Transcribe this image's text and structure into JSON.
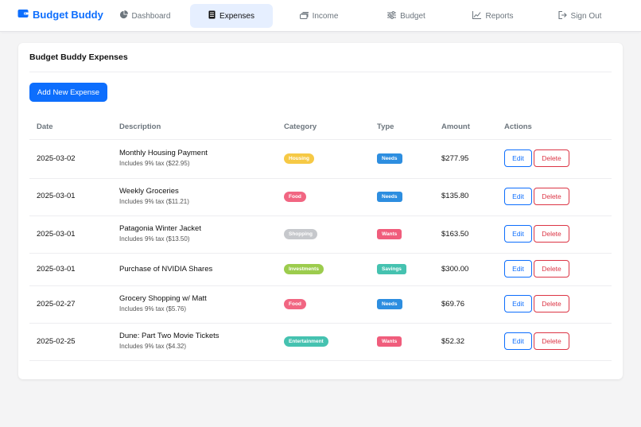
{
  "app": {
    "name": "Budget Buddy",
    "brand_color": "#0d6efd"
  },
  "nav": [
    {
      "label": "Dashboard",
      "icon": "pie-chart-icon"
    },
    {
      "label": "Expenses",
      "icon": "receipt-icon",
      "active": true
    },
    {
      "label": "Income",
      "icon": "cash-stack-icon"
    },
    {
      "label": "Budget",
      "icon": "sliders-icon"
    },
    {
      "label": "Reports",
      "icon": "graph-up-icon"
    },
    {
      "label": "Sign Out",
      "icon": "sign-out-icon"
    }
  ],
  "page": {
    "title": "Budget Buddy Expenses",
    "add_button": "Add New Expense"
  },
  "table": {
    "headers": [
      "Date",
      "Description",
      "Category",
      "Type",
      "Amount",
      "Actions"
    ],
    "edit_label": "Edit",
    "delete_label": "Delete",
    "rows": [
      {
        "date": "2025-03-02",
        "description": "Monthly Housing Payment",
        "tax_note": "Includes 9% tax ($22.95)",
        "category": "Housing",
        "type": "Needs",
        "amount": "$277.95"
      },
      {
        "date": "2025-03-01",
        "description": "Weekly Groceries",
        "tax_note": "Includes 9% tax ($11.21)",
        "category": "Food",
        "type": "Needs",
        "amount": "$135.80"
      },
      {
        "date": "2025-03-01",
        "description": "Patagonia Winter Jacket",
        "tax_note": "Includes 9% tax ($13.50)",
        "category": "Shopping",
        "type": "Wants",
        "amount": "$163.50"
      },
      {
        "date": "2025-03-01",
        "description": "Purchase of NVIDIA Shares",
        "tax_note": "",
        "category": "Investments",
        "type": "Savings",
        "amount": "$300.00"
      },
      {
        "date": "2025-02-27",
        "description": "Grocery Shopping w/ Matt",
        "tax_note": "Includes 9% tax ($5.76)",
        "category": "Food",
        "type": "Needs",
        "amount": "$69.76"
      },
      {
        "date": "2025-02-25",
        "description": "Dune: Part Two Movie Tickets",
        "tax_note": "Includes 9% tax ($4.32)",
        "category": "Entertainment",
        "type": "Wants",
        "amount": "$52.32"
      }
    ]
  },
  "colors": {
    "category": {
      "Housing": "#f6c945",
      "Food": "#f16682",
      "Shopping": "#c6c8cc",
      "Investments": "#9ccc4d",
      "Entertainment": "#45c2b0"
    },
    "type": {
      "Needs": "#2d8ee0",
      "Wants": "#f05d7c",
      "Savings": "#45c2b0"
    }
  }
}
